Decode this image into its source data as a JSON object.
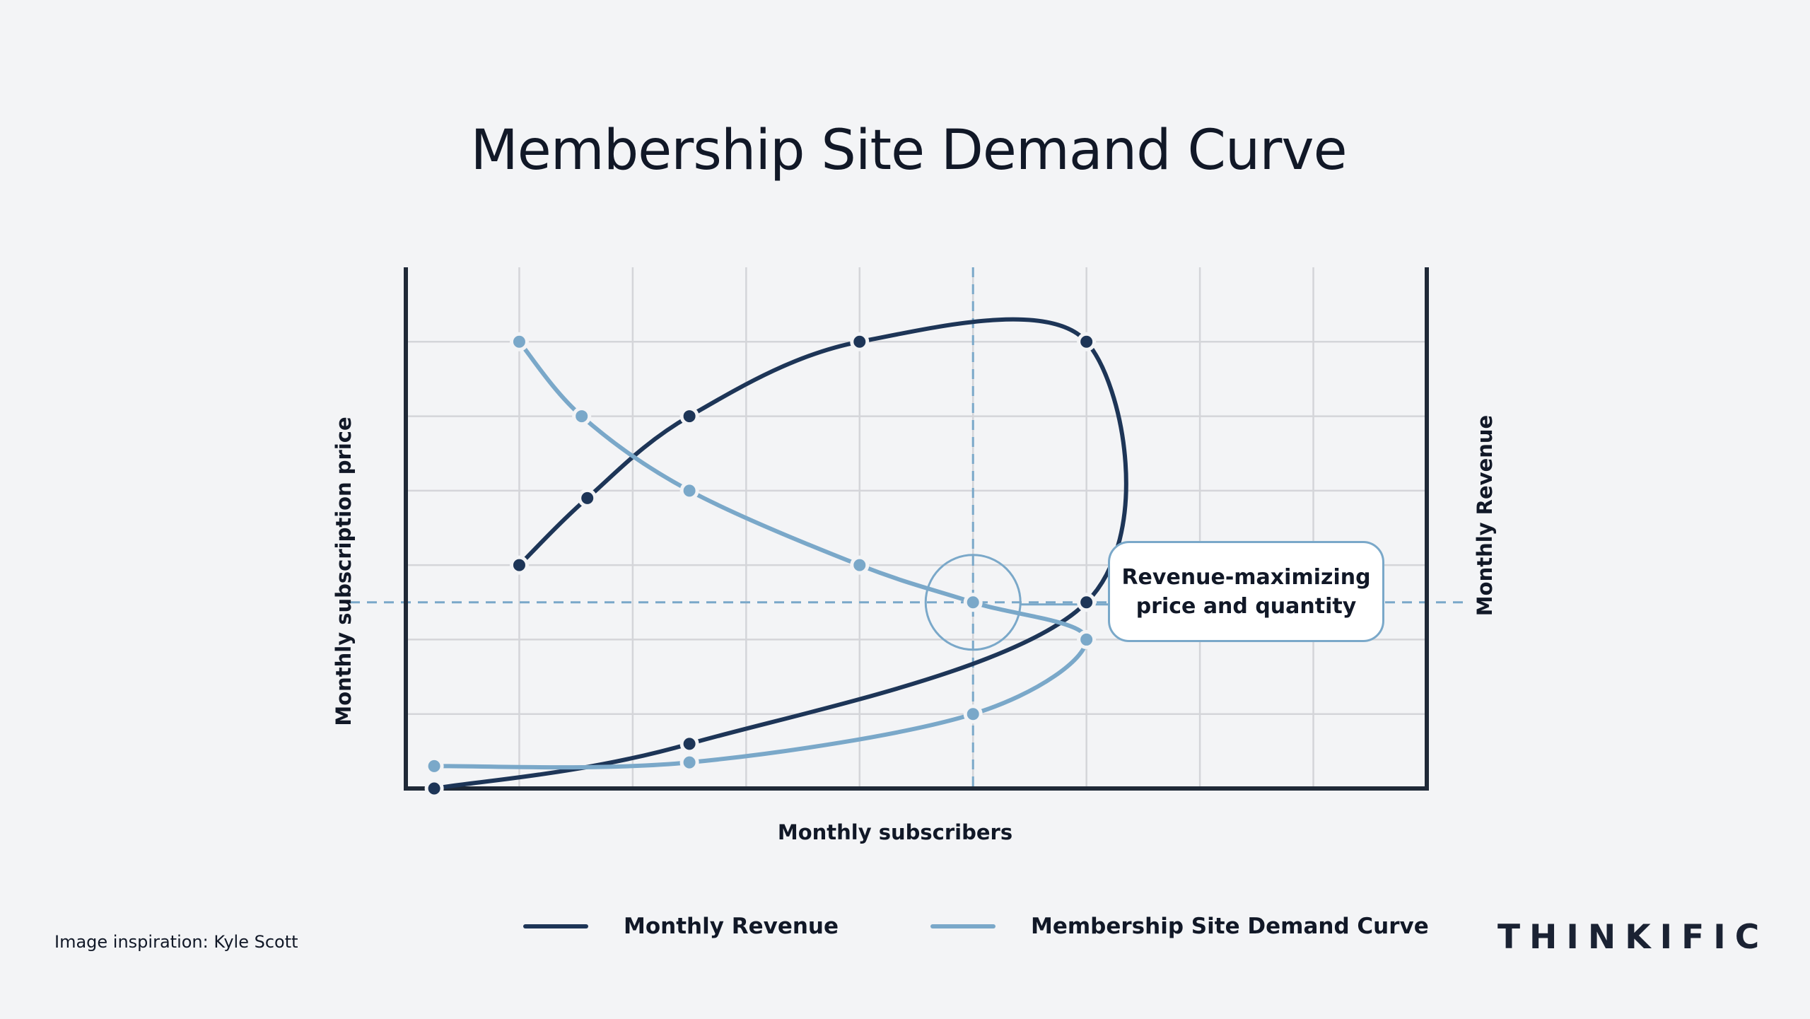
{
  "title": "Membership Site Demand Curve",
  "colors": {
    "revenue": "#1d3557",
    "demand": "#7aa8c9",
    "grid": "#d4d5d9",
    "axis": "#1f2937",
    "background": "#f3f4f6"
  },
  "chart_data": {
    "type": "line",
    "title": "Membership Site Demand Curve",
    "xlabel": "Monthly subscribers",
    "ylabel": "Monthly subscription price",
    "y2label": "Monthly Revenue",
    "xlim": [
      0,
      9
    ],
    "ylim": [
      0,
      7
    ],
    "grid": true,
    "legend_position": "bottom",
    "series": [
      {
        "name": "Monthly Revenue",
        "color": "#1d3557",
        "points": [
          [
            0.25,
            0.0
          ],
          [
            2.5,
            0.6
          ],
          [
            6.0,
            2.5
          ],
          [
            6.0,
            6.0
          ],
          [
            4.0,
            6.0
          ],
          [
            2.5,
            5.0
          ],
          [
            1.6,
            3.9
          ],
          [
            1.0,
            3.0
          ]
        ]
      },
      {
        "name": "Membership Site Demand Curve",
        "color": "#7aa8c9",
        "points": [
          [
            0.25,
            0.3
          ],
          [
            2.5,
            0.35
          ],
          [
            5.0,
            1.0
          ],
          [
            6.0,
            2.0
          ],
          [
            5.0,
            2.5
          ],
          [
            4.0,
            3.0
          ],
          [
            2.5,
            4.0
          ],
          [
            1.55,
            5.0
          ],
          [
            1.0,
            6.0
          ]
        ]
      }
    ],
    "annotations": [
      {
        "text": "Revenue-maximizing price and quantity",
        "x": 5.0,
        "y": 2.5,
        "reference_lines": {
          "x": 5.0,
          "y": 2.5
        }
      }
    ]
  },
  "legend": [
    {
      "label": "Monthly Revenue",
      "color": "#1d3557"
    },
    {
      "label": "Membership Site Demand Curve",
      "color": "#7aa8c9"
    }
  ],
  "credit": "Image inspiration: Kyle Scott",
  "logo": "THINKIFIC"
}
